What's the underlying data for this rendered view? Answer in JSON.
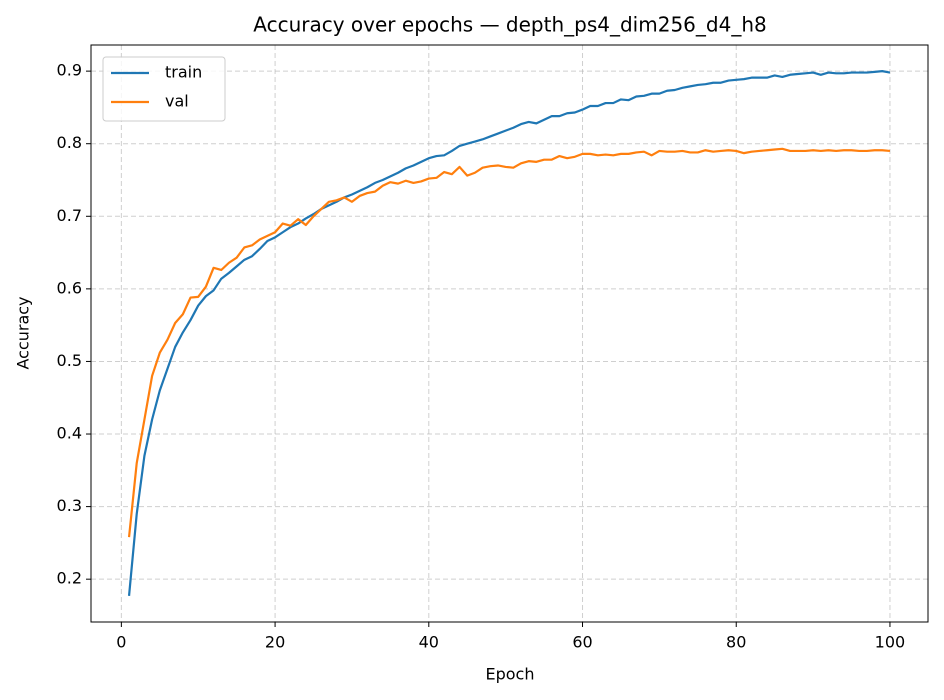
{
  "chart_data": {
    "type": "line",
    "title": "Accuracy over epochs — depth_ps4_dim256_d4_h8",
    "x_label": "Epoch",
    "y_label": "Accuracy",
    "x": [
      1,
      2,
      3,
      4,
      5,
      6,
      7,
      8,
      9,
      10,
      11,
      12,
      13,
      14,
      15,
      16,
      17,
      18,
      19,
      20,
      21,
      22,
      23,
      24,
      25,
      26,
      27,
      28,
      29,
      30,
      31,
      32,
      33,
      34,
      35,
      36,
      37,
      38,
      39,
      40,
      41,
      42,
      43,
      44,
      45,
      46,
      47,
      48,
      49,
      50,
      51,
      52,
      53,
      54,
      55,
      56,
      57,
      58,
      59,
      60,
      61,
      62,
      63,
      64,
      65,
      66,
      67,
      68,
      69,
      70,
      71,
      72,
      73,
      74,
      75,
      76,
      77,
      78,
      79,
      80,
      81,
      82,
      83,
      84,
      85,
      86,
      87,
      88,
      89,
      90,
      91,
      92,
      93,
      94,
      95,
      96,
      97,
      98,
      99,
      100
    ],
    "series": [
      {
        "name": "train",
        "color": "#1f77b4",
        "values": [
          0.177,
          0.29,
          0.37,
          0.42,
          0.46,
          0.49,
          0.52,
          0.54,
          0.557,
          0.577,
          0.59,
          0.598,
          0.614,
          0.622,
          0.631,
          0.64,
          0.645,
          0.655,
          0.666,
          0.671,
          0.678,
          0.685,
          0.69,
          0.697,
          0.703,
          0.71,
          0.715,
          0.72,
          0.726,
          0.73,
          0.735,
          0.74,
          0.746,
          0.75,
          0.755,
          0.76,
          0.766,
          0.77,
          0.775,
          0.78,
          0.783,
          0.784,
          0.79,
          0.797,
          0.8,
          0.803,
          0.806,
          0.81,
          0.814,
          0.818,
          0.822,
          0.827,
          0.83,
          0.828,
          0.833,
          0.838,
          0.838,
          0.842,
          0.843,
          0.847,
          0.852,
          0.852,
          0.856,
          0.856,
          0.861,
          0.86,
          0.865,
          0.866,
          0.869,
          0.869,
          0.873,
          0.874,
          0.877,
          0.879,
          0.881,
          0.882,
          0.884,
          0.884,
          0.887,
          0.888,
          0.889,
          0.891,
          0.891,
          0.891,
          0.894,
          0.892,
          0.895,
          0.896,
          0.897,
          0.898,
          0.895,
          0.898,
          0.897,
          0.897,
          0.898,
          0.898,
          0.898,
          0.899,
          0.9,
          0.898
        ]
      },
      {
        "name": "val",
        "color": "#ff7f0e",
        "values": [
          0.258,
          0.36,
          0.42,
          0.48,
          0.512,
          0.53,
          0.553,
          0.565,
          0.588,
          0.589,
          0.603,
          0.629,
          0.626,
          0.636,
          0.643,
          0.657,
          0.66,
          0.668,
          0.673,
          0.678,
          0.69,
          0.687,
          0.696,
          0.688,
          0.7,
          0.71,
          0.72,
          0.722,
          0.726,
          0.72,
          0.728,
          0.732,
          0.734,
          0.742,
          0.747,
          0.745,
          0.749,
          0.746,
          0.748,
          0.752,
          0.753,
          0.761,
          0.758,
          0.768,
          0.756,
          0.76,
          0.767,
          0.769,
          0.77,
          0.768,
          0.767,
          0.773,
          0.776,
          0.775,
          0.778,
          0.778,
          0.783,
          0.78,
          0.782,
          0.786,
          0.786,
          0.784,
          0.785,
          0.784,
          0.786,
          0.786,
          0.788,
          0.789,
          0.784,
          0.79,
          0.789,
          0.789,
          0.79,
          0.788,
          0.788,
          0.791,
          0.789,
          0.79,
          0.791,
          0.79,
          0.787,
          0.789,
          0.79,
          0.791,
          0.792,
          0.793,
          0.79,
          0.79,
          0.79,
          0.791,
          0.79,
          0.791,
          0.79,
          0.791,
          0.791,
          0.79,
          0.79,
          0.791,
          0.791,
          0.79
        ]
      }
    ],
    "xlim": [
      -3.95,
      104.95
    ],
    "xticks": [
      0,
      20,
      40,
      60,
      80,
      100
    ],
    "ylim": [
      0.141,
      0.936
    ],
    "yticks": [
      0.2,
      0.3,
      0.4,
      0.5,
      0.6,
      0.7,
      0.8,
      0.9
    ],
    "grid": true,
    "legend": "upper left"
  }
}
